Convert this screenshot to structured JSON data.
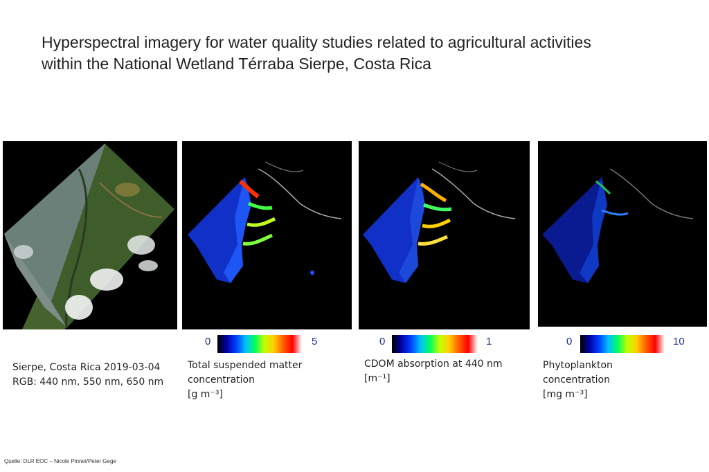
{
  "title": {
    "line1": "Hyperspectral imagery for water quality studies related to agricultural activities",
    "line2": "within the National Wetland Térraba Sierpe, Costa Rica"
  },
  "panels": [
    {
      "caption": [
        "Sierpe, Costa Rica 2019-03-04",
        "RGB: 440 nm, 550 nm,  650 nm"
      ]
    },
    {
      "colorbar": {
        "min": "0",
        "max": "5",
        "colors": [
          "#000000",
          "#0000aa",
          "#0040ff",
          "#00c0ff",
          "#00ff60",
          "#c0ff00",
          "#ffd000",
          "#ff6000",
          "#ff0000",
          "#ffffff"
        ]
      },
      "caption": [
        "Total suspended matter",
        "concentration",
        "[g m⁻³]"
      ]
    },
    {
      "colorbar": {
        "min": "0",
        "max": "1",
        "colors": [
          "#000000",
          "#0000aa",
          "#0040ff",
          "#00c0ff",
          "#00ff60",
          "#c0ff00",
          "#ffd000",
          "#ff6000",
          "#ff0000",
          "#ffffff"
        ]
      },
      "caption": [
        "CDOM absorption at 440 nm",
        "[m⁻¹]"
      ]
    },
    {
      "colorbar": {
        "min": "0",
        "max": "10",
        "colors": [
          "#000000",
          "#0000aa",
          "#0040ff",
          "#00c0ff",
          "#00ff60",
          "#c0ff00",
          "#ffd000",
          "#ff6000",
          "#ff0000",
          "#ffffff"
        ]
      },
      "caption": [
        "Phytoplankton",
        "concentration",
        "[mg m⁻³]"
      ]
    }
  ],
  "source": "Quelle: DLR EOC – Nicole Pinnel/Peter Gege"
}
